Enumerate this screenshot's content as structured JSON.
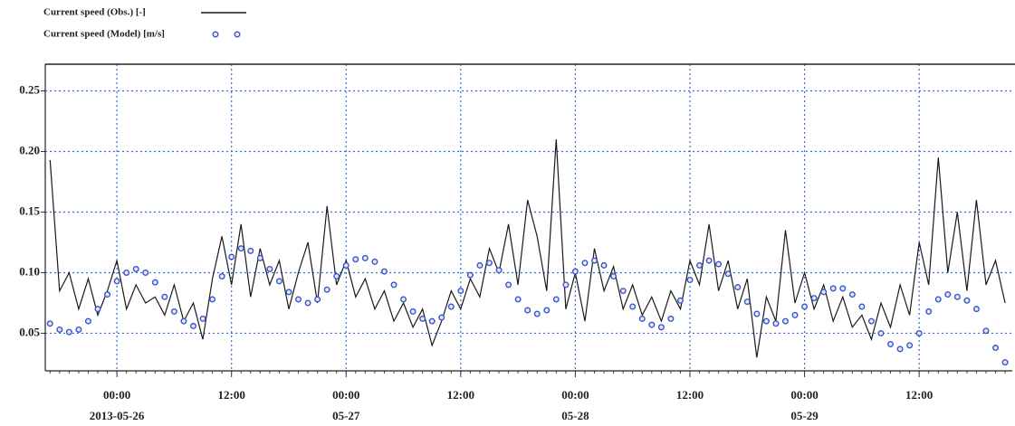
{
  "chart_data": {
    "type": "line",
    "series": [
      {
        "name": "Current speed (Obs.) [-]",
        "style": "line",
        "color": "#1a1a1a",
        "values": [
          0.193,
          0.085,
          0.1,
          0.07,
          0.095,
          0.065,
          0.085,
          0.11,
          0.07,
          0.09,
          0.075,
          0.08,
          0.065,
          0.09,
          0.06,
          0.075,
          0.045,
          0.095,
          0.13,
          0.09,
          0.14,
          0.08,
          0.12,
          0.09,
          0.11,
          0.07,
          0.1,
          0.125,
          0.075,
          0.155,
          0.09,
          0.11,
          0.08,
          0.095,
          0.07,
          0.085,
          0.06,
          0.075,
          0.055,
          0.07,
          0.04,
          0.06,
          0.085,
          0.07,
          0.095,
          0.08,
          0.12,
          0.1,
          0.14,
          0.09,
          0.16,
          0.13,
          0.085,
          0.21,
          0.07,
          0.1,
          0.06,
          0.12,
          0.085,
          0.105,
          0.07,
          0.09,
          0.065,
          0.08,
          0.06,
          0.085,
          0.07,
          0.11,
          0.09,
          0.14,
          0.085,
          0.11,
          0.07,
          0.095,
          0.03,
          0.08,
          0.06,
          0.135,
          0.075,
          0.1,
          0.07,
          0.09,
          0.06,
          0.08,
          0.055,
          0.065,
          0.045,
          0.075,
          0.055,
          0.09,
          0.065,
          0.125,
          0.09,
          0.195,
          0.1,
          0.15,
          0.085,
          0.16,
          0.09,
          0.11,
          0.075
        ]
      },
      {
        "name": "Current speed (Model) [m/s]",
        "style": "markers",
        "color": "#3a55c8",
        "values": [
          0.058,
          0.053,
          0.051,
          0.053,
          0.06,
          0.07,
          0.082,
          0.093,
          0.1,
          0.103,
          0.1,
          0.092,
          0.08,
          0.068,
          0.06,
          0.056,
          0.062,
          0.078,
          0.097,
          0.113,
          0.12,
          0.118,
          0.112,
          0.103,
          0.093,
          0.084,
          0.078,
          0.075,
          0.078,
          0.086,
          0.097,
          0.106,
          0.111,
          0.112,
          0.109,
          0.101,
          0.09,
          0.078,
          0.068,
          0.062,
          0.06,
          0.063,
          0.072,
          0.085,
          0.098,
          0.106,
          0.108,
          0.102,
          0.09,
          0.078,
          0.069,
          0.066,
          0.069,
          0.078,
          0.09,
          0.101,
          0.108,
          0.11,
          0.106,
          0.097,
          0.085,
          0.072,
          0.062,
          0.057,
          0.055,
          0.062,
          0.077,
          0.094,
          0.106,
          0.11,
          0.107,
          0.099,
          0.088,
          0.076,
          0.066,
          0.06,
          0.058,
          0.06,
          0.065,
          0.072,
          0.079,
          0.084,
          0.087,
          0.087,
          0.082,
          0.072,
          0.06,
          0.05,
          0.041,
          0.037,
          0.04,
          0.05,
          0.068,
          0.078,
          0.082,
          0.08,
          0.077,
          0.07,
          0.052,
          0.038,
          0.026
        ]
      }
    ],
    "x": [
      "2013-05-25 17:00",
      "2013-05-25 18:00",
      "2013-05-25 19:00",
      "2013-05-25 20:00",
      "2013-05-25 21:00",
      "2013-05-25 22:00",
      "2013-05-25 23:00",
      "2013-05-26 00:00",
      "2013-05-26 01:00",
      "2013-05-26 02:00",
      "2013-05-26 03:00",
      "2013-05-26 04:00",
      "2013-05-26 05:00",
      "2013-05-26 06:00",
      "2013-05-26 07:00",
      "2013-05-26 08:00",
      "2013-05-26 09:00",
      "2013-05-26 10:00",
      "2013-05-26 11:00",
      "2013-05-26 12:00",
      "2013-05-26 13:00",
      "2013-05-26 14:00",
      "2013-05-26 15:00",
      "2013-05-26 16:00",
      "2013-05-26 17:00",
      "2013-05-26 18:00",
      "2013-05-26 19:00",
      "2013-05-26 20:00",
      "2013-05-26 21:00",
      "2013-05-26 22:00",
      "2013-05-26 23:00",
      "2013-05-27 00:00",
      "2013-05-27 01:00",
      "2013-05-27 02:00",
      "2013-05-27 03:00",
      "2013-05-27 04:00",
      "2013-05-27 05:00",
      "2013-05-27 06:00",
      "2013-05-27 07:00",
      "2013-05-27 08:00",
      "2013-05-27 09:00",
      "2013-05-27 10:00",
      "2013-05-27 11:00",
      "2013-05-27 12:00",
      "2013-05-27 13:00",
      "2013-05-27 14:00",
      "2013-05-27 15:00",
      "2013-05-27 16:00",
      "2013-05-27 17:00",
      "2013-05-27 18:00",
      "2013-05-27 19:00",
      "2013-05-27 20:00",
      "2013-05-27 21:00",
      "2013-05-27 22:00",
      "2013-05-27 23:00",
      "2013-05-28 00:00",
      "2013-05-28 01:00",
      "2013-05-28 02:00",
      "2013-05-28 03:00",
      "2013-05-28 04:00",
      "2013-05-28 05:00",
      "2013-05-28 06:00",
      "2013-05-28 07:00",
      "2013-05-28 08:00",
      "2013-05-28 09:00",
      "2013-05-28 10:00",
      "2013-05-28 11:00",
      "2013-05-28 12:00",
      "2013-05-28 13:00",
      "2013-05-28 14:00",
      "2013-05-28 15:00",
      "2013-05-28 16:00",
      "2013-05-28 17:00",
      "2013-05-28 18:00",
      "2013-05-28 19:00",
      "2013-05-28 20:00",
      "2013-05-28 21:00",
      "2013-05-28 22:00",
      "2013-05-28 23:00",
      "2013-05-29 00:00",
      "2013-05-29 01:00",
      "2013-05-29 02:00",
      "2013-05-29 03:00",
      "2013-05-29 04:00",
      "2013-05-29 05:00",
      "2013-05-29 06:00",
      "2013-05-29 07:00",
      "2013-05-29 08:00",
      "2013-05-29 09:00",
      "2013-05-29 10:00",
      "2013-05-29 11:00",
      "2013-05-29 12:00",
      "2013-05-29 13:00",
      "2013-05-29 14:00",
      "2013-05-29 15:00",
      "2013-05-29 16:00",
      "2013-05-29 17:00",
      "2013-05-29 18:00",
      "2013-05-29 19:00",
      "2013-05-29 20:00",
      "2013-05-29 21:00"
    ],
    "xlim": [
      "2013-05-25 16:30",
      "2013-05-29 21:45"
    ],
    "xticks": [
      {
        "value": "2013-05-26 00:00",
        "label": "00:00",
        "sublabel": "2013-05-26"
      },
      {
        "value": "2013-05-26 12:00",
        "label": "12:00"
      },
      {
        "value": "2013-05-27 00:00",
        "label": "00:00",
        "sublabel": "05-27"
      },
      {
        "value": "2013-05-27 12:00",
        "label": "12:00"
      },
      {
        "value": "2013-05-28 00:00",
        "label": "00:00",
        "sublabel": "05-28"
      },
      {
        "value": "2013-05-28 12:00",
        "label": "12:00"
      },
      {
        "value": "2013-05-29 00:00",
        "label": "00:00",
        "sublabel": "05-29"
      },
      {
        "value": "2013-05-29 12:00",
        "label": "12:00"
      }
    ],
    "ylim": [
      0.019,
      0.272
    ],
    "yticks": [
      0.05,
      {
        "value": 0.1,
        "label": "0.10"
      },
      0.15,
      {
        "value": 0.2,
        "label": "0.20"
      },
      0.25
    ],
    "grid": true,
    "legend": "top-left"
  }
}
